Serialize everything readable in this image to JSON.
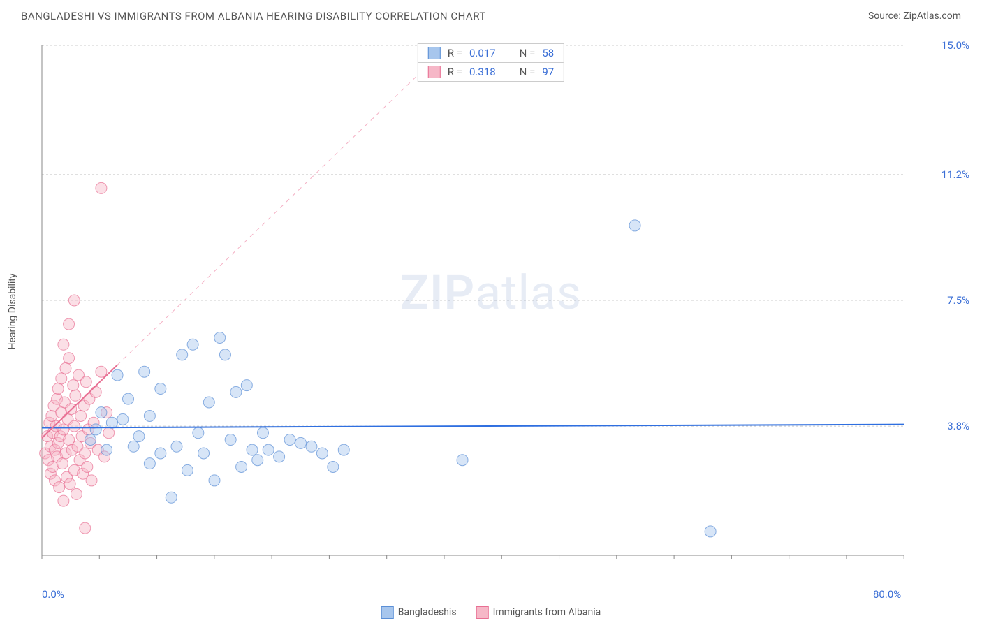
{
  "title": "BANGLADESHI VS IMMIGRANTS FROM ALBANIA HEARING DISABILITY CORRELATION CHART",
  "source": "Source: ZipAtlas.com",
  "watermark": "ZIPatlas",
  "y_axis_label": "Hearing Disability",
  "chart": {
    "type": "scatter",
    "background_color": "#ffffff",
    "grid_color": "#cccccc",
    "axis_color": "#888888",
    "xlim": [
      0,
      80
    ],
    "ylim": [
      0,
      15
    ],
    "x_ticks_major": [
      0,
      80
    ],
    "x_tick_labels": [
      "0.0%",
      "80.0%"
    ],
    "x_minor_step": 5.33,
    "y_ticks": [
      3.8,
      7.5,
      11.2,
      15.0
    ],
    "y_tick_labels": [
      "3.8%",
      "7.5%",
      "11.2%",
      "15.0%"
    ],
    "marker_radius": 8,
    "marker_opacity": 0.45,
    "series": [
      {
        "name": "Bangladeshis",
        "label": "Bangladeshis",
        "color_fill": "#a7c6ed",
        "color_stroke": "#5b8fd6",
        "R": "0.017",
        "N": "58",
        "trend": {
          "x1": 0,
          "y1": 3.75,
          "x2": 80,
          "y2": 3.85,
          "color": "#2f6fe0",
          "width": 2,
          "dash": "none"
        },
        "trend_extrapolate": null,
        "points": [
          [
            4.5,
            3.4
          ],
          [
            5,
            3.7
          ],
          [
            5.5,
            4.2
          ],
          [
            6,
            3.1
          ],
          [
            6.5,
            3.9
          ],
          [
            7,
            5.3
          ],
          [
            7.5,
            4.0
          ],
          [
            8,
            4.6
          ],
          [
            8.5,
            3.2
          ],
          [
            9,
            3.5
          ],
          [
            9.5,
            5.4
          ],
          [
            10,
            2.7
          ],
          [
            10,
            4.1
          ],
          [
            11,
            3.0
          ],
          [
            11,
            4.9
          ],
          [
            12,
            1.7
          ],
          [
            12.5,
            3.2
          ],
          [
            13,
            5.9
          ],
          [
            13.5,
            2.5
          ],
          [
            14,
            6.2
          ],
          [
            14.5,
            3.6
          ],
          [
            15,
            3.0
          ],
          [
            15.5,
            4.5
          ],
          [
            16,
            2.2
          ],
          [
            16.5,
            6.4
          ],
          [
            17,
            5.9
          ],
          [
            17.5,
            3.4
          ],
          [
            18,
            4.8
          ],
          [
            18.5,
            2.6
          ],
          [
            19,
            5.0
          ],
          [
            19.5,
            3.1
          ],
          [
            20,
            2.8
          ],
          [
            20.5,
            3.6
          ],
          [
            21,
            3.1
          ],
          [
            22,
            2.9
          ],
          [
            23,
            3.4
          ],
          [
            24,
            3.3
          ],
          [
            25,
            3.2
          ],
          [
            26,
            3.0
          ],
          [
            27,
            2.6
          ],
          [
            28,
            3.1
          ],
          [
            39,
            2.8
          ],
          [
            55,
            9.7
          ],
          [
            62,
            0.7
          ]
        ]
      },
      {
        "name": "Immigrants from Albania",
        "label": "Immigrants from Albania",
        "color_fill": "#f6b7c7",
        "color_stroke": "#e86f93",
        "R": "0.318",
        "N": "97",
        "trend": {
          "x1": 0,
          "y1": 3.45,
          "x2": 7,
          "y2": 5.6,
          "color": "#e86f93",
          "width": 2,
          "dash": "none"
        },
        "trend_extrapolate": {
          "x1": 7,
          "y1": 5.6,
          "x2": 40,
          "y2": 15.7,
          "color": "#f4b0c4",
          "width": 1,
          "dash": "6,6"
        },
        "points": [
          [
            0.3,
            3.0
          ],
          [
            0.5,
            3.5
          ],
          [
            0.6,
            2.8
          ],
          [
            0.7,
            3.9
          ],
          [
            0.8,
            3.2
          ],
          [
            0.8,
            2.4
          ],
          [
            0.9,
            4.1
          ],
          [
            1.0,
            3.6
          ],
          [
            1.0,
            2.6
          ],
          [
            1.1,
            4.4
          ],
          [
            1.2,
            3.1
          ],
          [
            1.2,
            2.2
          ],
          [
            1.3,
            3.8
          ],
          [
            1.4,
            4.6
          ],
          [
            1.4,
            2.9
          ],
          [
            1.5,
            3.3
          ],
          [
            1.5,
            4.9
          ],
          [
            1.6,
            2.0
          ],
          [
            1.7,
            3.5
          ],
          [
            1.8,
            4.2
          ],
          [
            1.8,
            5.2
          ],
          [
            1.9,
            2.7
          ],
          [
            2.0,
            3.7
          ],
          [
            2.0,
            1.6
          ],
          [
            2.1,
            4.5
          ],
          [
            2.2,
            5.5
          ],
          [
            2.2,
            3.0
          ],
          [
            2.3,
            2.3
          ],
          [
            2.4,
            4.0
          ],
          [
            2.5,
            5.8
          ],
          [
            2.5,
            3.4
          ],
          [
            2.6,
            2.1
          ],
          [
            2.7,
            4.3
          ],
          [
            2.8,
            3.1
          ],
          [
            2.9,
            5.0
          ],
          [
            3.0,
            2.5
          ],
          [
            3.0,
            3.8
          ],
          [
            3.1,
            4.7
          ],
          [
            3.2,
            1.8
          ],
          [
            3.3,
            3.2
          ],
          [
            3.4,
            5.3
          ],
          [
            3.5,
            2.8
          ],
          [
            3.6,
            4.1
          ],
          [
            3.7,
            3.5
          ],
          [
            3.8,
            2.4
          ],
          [
            3.9,
            4.4
          ],
          [
            4.0,
            3.0
          ],
          [
            4.1,
            5.1
          ],
          [
            4.2,
            2.6
          ],
          [
            4.3,
            3.7
          ],
          [
            4.4,
            4.6
          ],
          [
            4.5,
            3.3
          ],
          [
            4.6,
            2.2
          ],
          [
            4.8,
            3.9
          ],
          [
            5.0,
            4.8
          ],
          [
            5.2,
            3.1
          ],
          [
            5.5,
            5.4
          ],
          [
            5.8,
            2.9
          ],
          [
            6.0,
            4.2
          ],
          [
            6.2,
            3.6
          ],
          [
            2.0,
            6.2
          ],
          [
            2.5,
            6.8
          ],
          [
            3.0,
            7.5
          ],
          [
            5.5,
            10.8
          ],
          [
            4.0,
            0.8
          ]
        ]
      }
    ]
  },
  "legend_bottom": [
    {
      "label": "Bangladeshis",
      "fill": "#a7c6ed",
      "stroke": "#5b8fd6"
    },
    {
      "label": "Immigrants from Albania",
      "fill": "#f6b7c7",
      "stroke": "#e86f93"
    }
  ],
  "stats_box": [
    {
      "fill": "#a7c6ed",
      "stroke": "#5b8fd6",
      "R_label": "R =",
      "R": "0.017",
      "N_label": "N =",
      "N": "58"
    },
    {
      "fill": "#f6b7c7",
      "stroke": "#e86f93",
      "R_label": "R =",
      "R": "0.318",
      "N_label": "N =",
      "N": "97"
    }
  ]
}
